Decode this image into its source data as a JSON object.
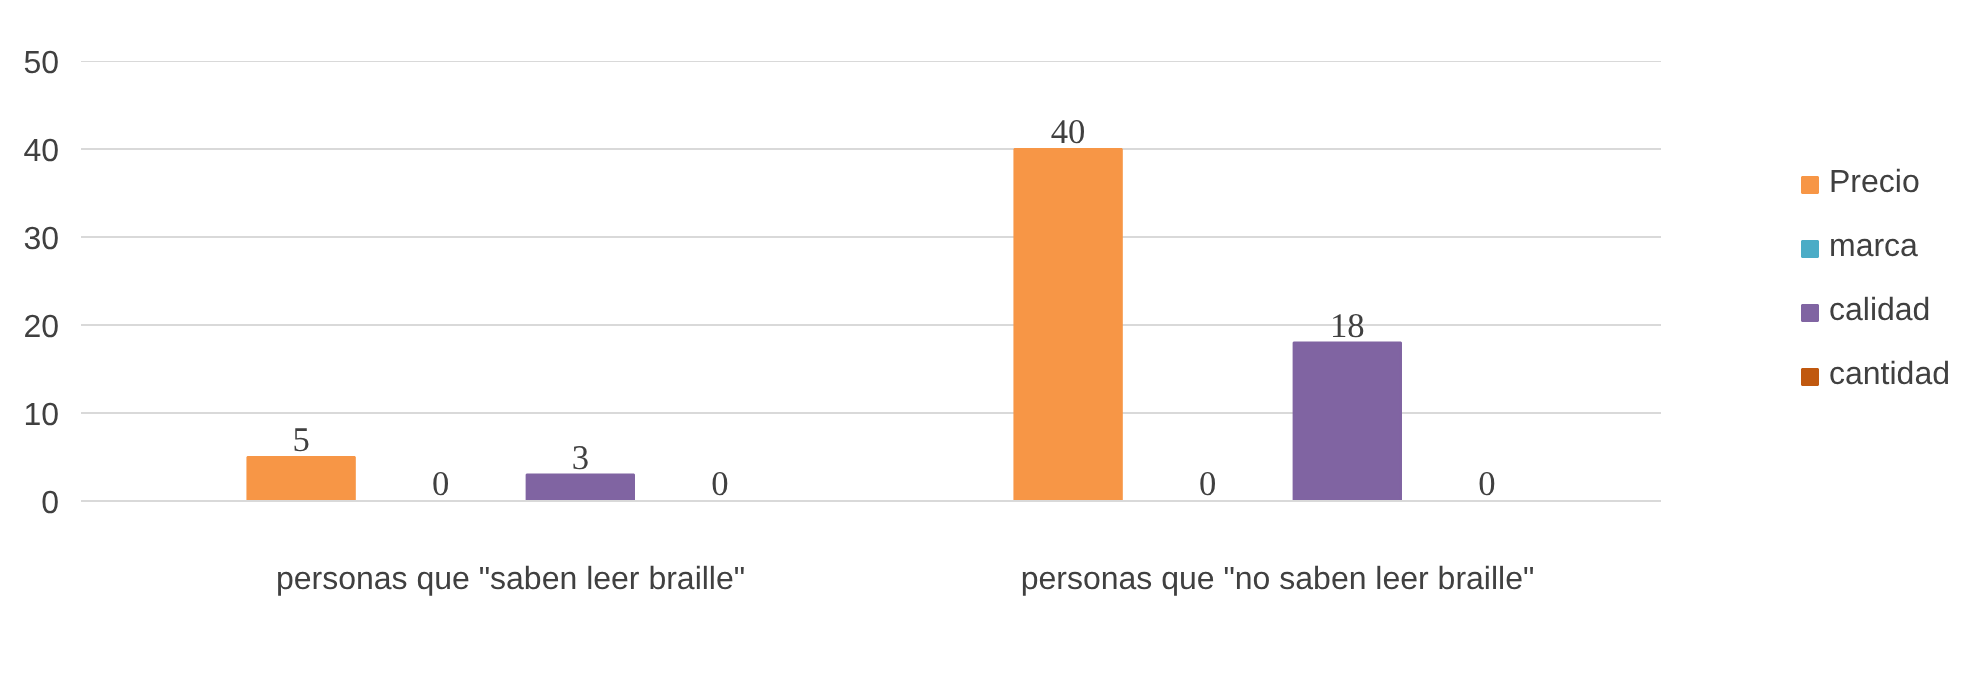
{
  "chart_data": {
    "type": "bar",
    "categories": [
      "personas que \"saben leer braille\"",
      "personas que \"no saben leer braille\""
    ],
    "series": [
      {
        "name": "Precio",
        "color": "#f79646",
        "values": [
          5,
          40
        ]
      },
      {
        "name": "marca",
        "color": "#4bacc6",
        "values": [
          0,
          0
        ]
      },
      {
        "name": "calidad",
        "color": "#8064a2",
        "values": [
          3,
          18
        ]
      },
      {
        "name": "cantidad",
        "color": "#c0580f",
        "values": [
          0,
          0
        ]
      }
    ],
    "ylim": [
      0,
      50
    ],
    "yticks": [
      0,
      10,
      20,
      30,
      40,
      50
    ],
    "grid": "y",
    "legend": "right",
    "data_labels": true
  }
}
